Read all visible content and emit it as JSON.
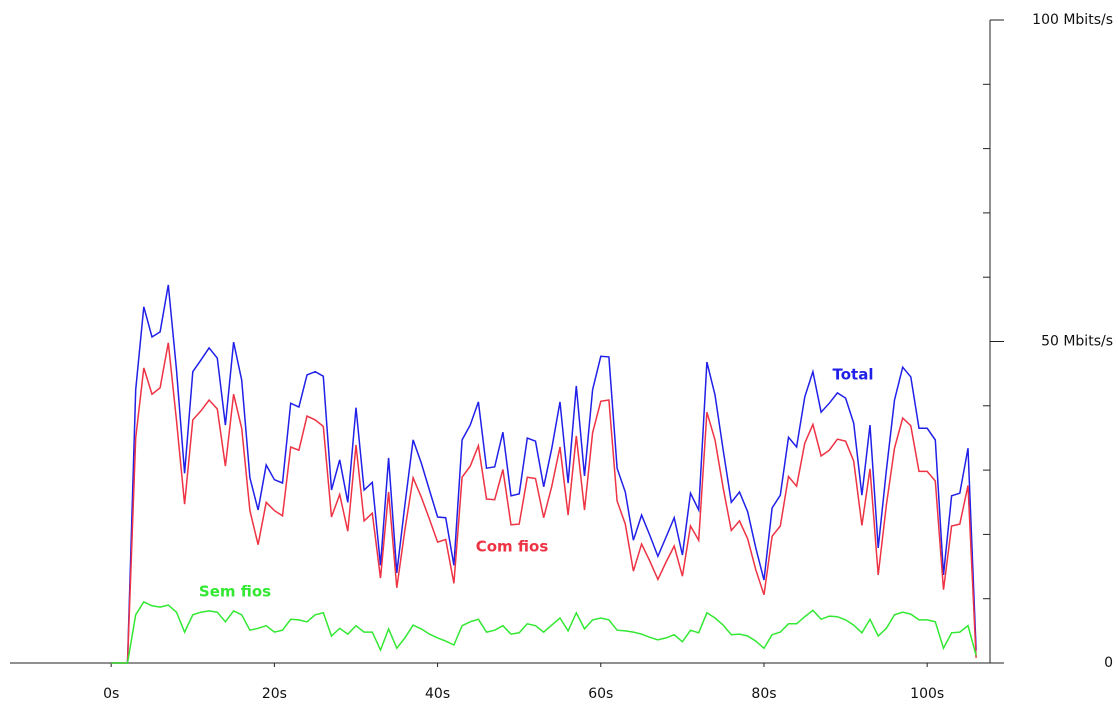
{
  "chart_data": {
    "type": "line",
    "x": [
      0,
      1,
      2,
      3,
      4,
      5,
      6,
      7,
      8,
      9,
      10,
      11,
      12,
      13,
      14,
      15,
      16,
      17,
      18,
      19,
      20,
      21,
      22,
      23,
      24,
      25,
      26,
      27,
      28,
      29,
      30,
      31,
      32,
      33,
      34,
      35,
      36,
      37,
      38,
      39,
      40,
      41,
      42,
      43,
      44,
      45,
      46,
      47,
      48,
      49,
      50,
      51,
      52,
      53,
      54,
      55,
      56,
      57,
      58,
      59,
      60,
      61,
      62,
      63,
      64,
      65,
      66,
      67,
      68,
      69,
      70,
      71,
      72,
      73,
      74,
      75,
      76,
      77,
      78,
      79,
      80,
      81,
      82,
      83,
      84,
      85,
      86,
      87,
      88,
      89,
      90,
      91,
      92,
      93,
      94,
      95,
      96,
      97,
      98,
      99,
      100,
      101,
      102,
      103,
      104,
      105,
      106
    ],
    "series": [
      {
        "name": "Total",
        "color": "#2020e8",
        "values": [
          0,
          0,
          0,
          42.5,
          55.4,
          50.7,
          51.5,
          58.8,
          45.6,
          29.5,
          45.3,
          47.1,
          49,
          47.4,
          37,
          49.9,
          44,
          28.8,
          23.8,
          30.8,
          28.5,
          28,
          40.4,
          39.8,
          44.8,
          45.3,
          44.6,
          26.9,
          31.6,
          25,
          39.7,
          26.9,
          28.1,
          15.2,
          31.9,
          14,
          24.6,
          34.7,
          31.1,
          26.9,
          22.7,
          22.6,
          15.2,
          34.7,
          37,
          40.6,
          30.3,
          30.5,
          35.9,
          26,
          26.3,
          35,
          34.5,
          27.4,
          33.4,
          40.6,
          28,
          43.1,
          29.1,
          42.5,
          47.7,
          47.6,
          30.3,
          26.6,
          19.1,
          23,
          19.9,
          16.6,
          19.6,
          22.6,
          16.8,
          26.4,
          23.8,
          46.8,
          41.7,
          33.1,
          25,
          26.6,
          23.5,
          17.9,
          12.9,
          24.1,
          26.1,
          35.1,
          33.6,
          41.4,
          45.3,
          39,
          40.4,
          42,
          41.2,
          37.3,
          26.1,
          37,
          17.9,
          30,
          40.9,
          46,
          44.5,
          36.5,
          36.5,
          34.7,
          13.7,
          26,
          26.4,
          33.4,
          2
        ]
      },
      {
        "name": "Com fios",
        "color": "#ee3344",
        "values": [
          0,
          0,
          0,
          35,
          45.9,
          41.8,
          42.8,
          49.8,
          37.7,
          24.7,
          37.8,
          39.2,
          40.9,
          39.5,
          30.6,
          41.8,
          36.5,
          23.7,
          18.4,
          25,
          23.7,
          22.9,
          33.6,
          33.1,
          38.4,
          37.8,
          36.8,
          22.7,
          26.2,
          20.5,
          33.9,
          22.1,
          23.3,
          13.2,
          26.6,
          11.7,
          20.7,
          28.8,
          25.8,
          22.4,
          18.8,
          19.2,
          12.4,
          28.9,
          30.6,
          33.8,
          25.5,
          25.4,
          30.1,
          21.5,
          21.6,
          28.9,
          28.7,
          22.6,
          27.5,
          33.6,
          23,
          35.3,
          23.8,
          35.8,
          40.7,
          40.9,
          25.2,
          21.6,
          14.3,
          18.5,
          15.9,
          13,
          15.7,
          18.2,
          13.5,
          21.3,
          19.1,
          39,
          34.7,
          27.2,
          20.6,
          22.1,
          19.3,
          14.5,
          10.6,
          19.7,
          21.3,
          29,
          27.5,
          34.2,
          37.1,
          32.2,
          33.1,
          34.8,
          34.5,
          31.4,
          21.4,
          30.2,
          13.7,
          24.6,
          33.4,
          38.1,
          36.9,
          29.8,
          29.8,
          28.3,
          11.4,
          21.3,
          21.6,
          27.6,
          0.8
        ]
      },
      {
        "name": "Sem fios",
        "color": "#33e833",
        "values": [
          0,
          0,
          0,
          7.5,
          9.5,
          8.9,
          8.7,
          9,
          7.9,
          4.8,
          7.5,
          7.9,
          8.1,
          7.9,
          6.4,
          8.1,
          7.5,
          5.1,
          5.4,
          5.8,
          4.8,
          5.1,
          6.8,
          6.7,
          6.4,
          7.5,
          7.8,
          4.2,
          5.4,
          4.5,
          5.8,
          4.8,
          4.8,
          2,
          5.3,
          2.3,
          3.9,
          5.9,
          5.3,
          4.5,
          3.9,
          3.4,
          2.8,
          5.8,
          6.4,
          6.8,
          4.8,
          5.1,
          5.8,
          4.5,
          4.7,
          6.1,
          5.8,
          4.8,
          5.9,
          7,
          5,
          7.8,
          5.3,
          6.7,
          7,
          6.7,
          5.1,
          5,
          4.8,
          4.5,
          4,
          3.6,
          3.9,
          4.4,
          3.3,
          5.1,
          4.7,
          7.8,
          7,
          5.9,
          4.4,
          4.5,
          4.2,
          3.4,
          2.3,
          4.4,
          4.8,
          6.1,
          6.1,
          7.2,
          8.2,
          6.8,
          7.3,
          7.2,
          6.7,
          5.9,
          4.7,
          6.8,
          4.2,
          5.4,
          7.5,
          7.9,
          7.6,
          6.7,
          6.7,
          6.4,
          2.3,
          4.7,
          4.8,
          5.8,
          1.2
        ]
      }
    ],
    "xlim": [
      -12.4,
      107.7
    ],
    "xticks": [
      {
        "value": 0,
        "label": "0s"
      },
      {
        "value": 20,
        "label": "20s"
      },
      {
        "value": 40,
        "label": "40s"
      },
      {
        "value": 60,
        "label": "60s"
      },
      {
        "value": 80,
        "label": "80s"
      },
      {
        "value": 100,
        "label": "100s"
      }
    ],
    "ylim": [
      0,
      100
    ],
    "yticks": [
      0,
      {
        "value": 50,
        "label": "50 Mbits/s"
      },
      {
        "value": 100,
        "label": "100 Mbits/s"
      }
    ],
    "yminorticks": [
      10,
      20,
      30,
      40,
      60,
      70,
      80,
      90
    ],
    "grid": false
  }
}
